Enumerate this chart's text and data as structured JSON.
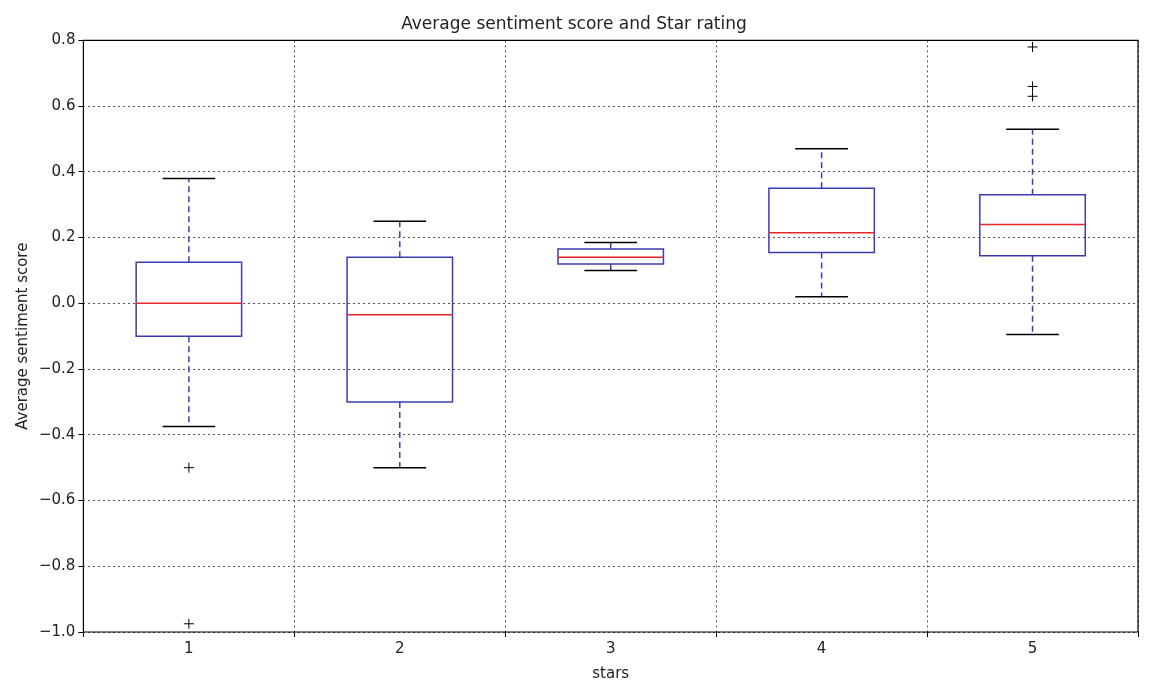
{
  "chart_data": {
    "type": "box",
    "title": "Average sentiment score and Star rating",
    "xlabel": "stars",
    "ylabel": "Average sentiment score",
    "categories": [
      "1",
      "2",
      "3",
      "4",
      "5"
    ],
    "color": "#3c3cb4",
    "boxes": [
      {
        "low": -0.375,
        "q1": -0.1,
        "median": 0,
        "q3": 0.125,
        "high": 0.38,
        "outliers": [
          -0.5,
          -0.975
        ]
      },
      {
        "low": -0.5,
        "q1": -0.3,
        "median": -0.035,
        "q3": 0.14,
        "high": 0.25
      },
      {
        "low": 0.1,
        "q1": 0.12,
        "median": 0.14,
        "q3": 0.165,
        "high": 0.185
      },
      {
        "low": 0.02,
        "q1": 0.155,
        "median": 0.215,
        "q3": 0.35,
        "high": 0.47
      },
      {
        "low": -0.095,
        "q1": 0.145,
        "median": 0.24,
        "q3": 0.33,
        "high": 0.53,
        "outliers": [
          0.63,
          0.66,
          0.78
        ]
      }
    ],
    "ylim": [
      -1.0,
      0.8
    ],
    "yticks": [
      {
        "value": -1.0,
        "label": "−1.0"
      },
      {
        "value": -0.8,
        "label": "−0.8"
      },
      {
        "value": -0.6,
        "label": "−0.6"
      },
      {
        "value": -0.4,
        "label": "−0.4"
      },
      {
        "value": -0.2,
        "label": "−0.2"
      },
      {
        "value": 0,
        "label": "0.0"
      },
      {
        "value": 0.2,
        "label": "0.2"
      },
      {
        "value": 0.4,
        "label": "0.4"
      },
      {
        "value": 0.6,
        "label": "0.6"
      },
      {
        "value": 0.8,
        "label": "0.8"
      }
    ],
    "grid": true,
    "line_style": "dashed",
    "marker": "cross"
  }
}
